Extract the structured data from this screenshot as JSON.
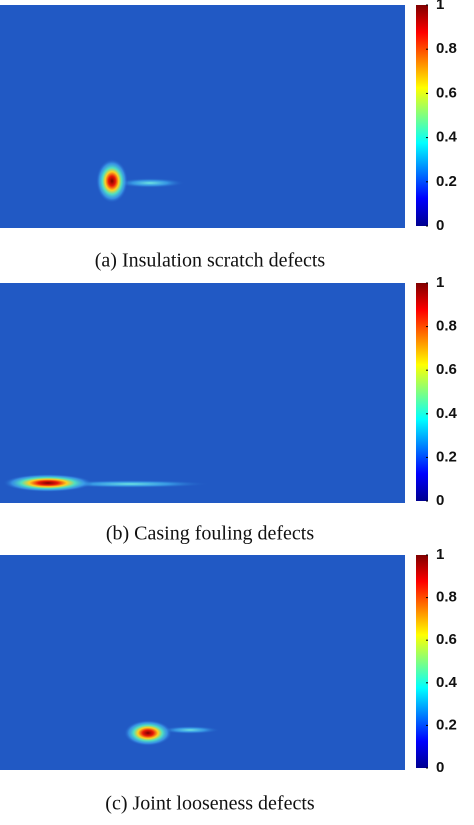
{
  "chart_data": [
    {
      "type": "heatmap",
      "title": "(a) Insulation scratch defects",
      "clim": [
        0,
        1
      ],
      "cticks": [
        0,
        0.2,
        0.4,
        0.6,
        0.8,
        1
      ]
    },
    {
      "type": "heatmap",
      "title": "(b) Casing fouling defects",
      "clim": [
        0,
        1
      ],
      "cticks": [
        0,
        0.2,
        0.4,
        0.6,
        0.8,
        1
      ]
    },
    {
      "type": "heatmap",
      "title": "(c) Joint looseness defects",
      "clim": [
        0,
        1
      ],
      "cticks": [
        0,
        0.2,
        0.4,
        0.6,
        0.8,
        1
      ]
    }
  ]
}
